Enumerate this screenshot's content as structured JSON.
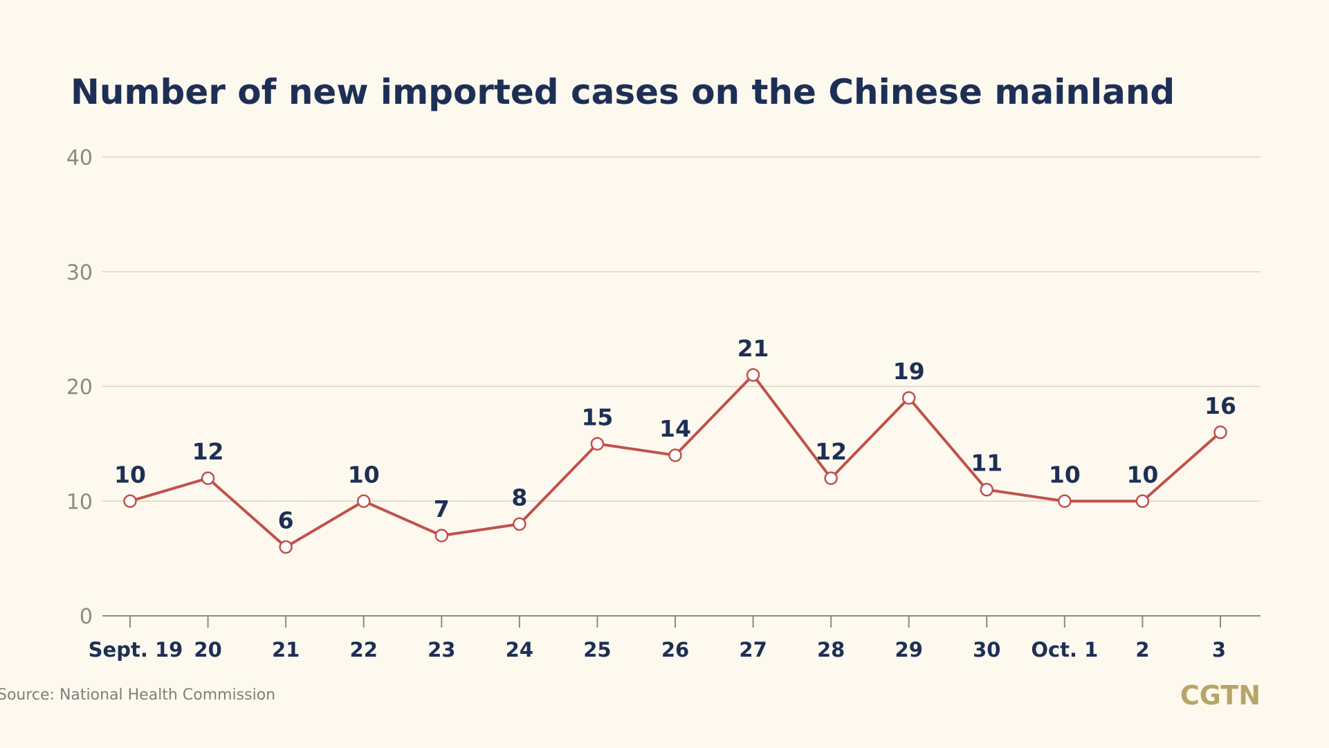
{
  "chart_data": {
    "type": "line",
    "title": "Number of new imported cases on the Chinese mainland",
    "categories": [
      "Sept. 19",
      "20",
      "21",
      "22",
      "23",
      "24",
      "25",
      "26",
      "27",
      "28",
      "29",
      "30",
      "Oct. 1",
      "2",
      "3"
    ],
    "values": [
      10,
      12,
      6,
      10,
      7,
      8,
      15,
      14,
      21,
      12,
      19,
      11,
      10,
      10,
      16
    ],
    "ylim": [
      0,
      40
    ],
    "yticks": [
      0,
      10,
      20,
      30,
      40
    ],
    "grid": true,
    "colors": {
      "line": "#c1504c",
      "label": "#1d2f55",
      "grid": "#d9d5c6"
    }
  },
  "source": "Source: National Health Commission",
  "logo": "CGTN"
}
